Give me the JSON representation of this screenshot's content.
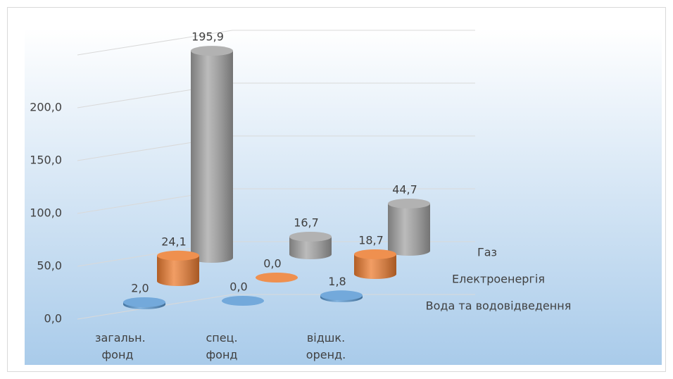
{
  "chart_data": {
    "type": "bar3d",
    "categories": [
      "загальн. фонд",
      "спец. фонд",
      "відшк. оренд."
    ],
    "series": [
      {
        "name": "Вода та водовідведення",
        "color": "#5b9bd5",
        "values": [
          2.0,
          0.0,
          1.8
        ],
        "value_labels": [
          "2,0",
          "0,0",
          "1,8"
        ]
      },
      {
        "name": "Електроенергія",
        "color": "#ed7d31",
        "values": [
          24.1,
          0.0,
          18.7
        ],
        "value_labels": [
          "24,1",
          "0,0",
          "18,7"
        ]
      },
      {
        "name": "Газ",
        "color": "#a5a5a5",
        "values": [
          195.9,
          16.7,
          44.7
        ],
        "value_labels": [
          "195,9",
          "16,7",
          "44,7"
        ]
      }
    ],
    "ylim": [
      0,
      250
    ],
    "yticks": [
      {
        "value": 0,
        "label": "0,0"
      },
      {
        "value": 50,
        "label": "50,0"
      },
      {
        "value": 100,
        "label": "100,0"
      },
      {
        "value": 150,
        "label": "150,0"
      },
      {
        "value": 200,
        "label": "200,0"
      }
    ],
    "grid": true
  }
}
